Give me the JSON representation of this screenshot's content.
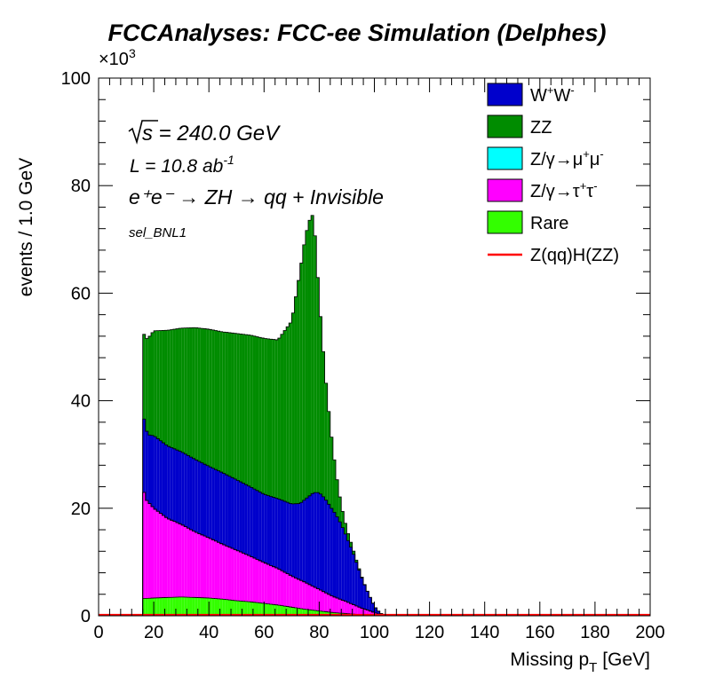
{
  "chart_data": {
    "type": "bar",
    "stacked": true,
    "title": "FCCAnalyses: FCC-ee Simulation (Delphes)",
    "xlabel": "Missing p",
    "xlabel_sub": "T",
    "xlabel_unit": "[GeV]",
    "ylabel": "events / 1.0 GeV",
    "y_multiplier": "×10",
    "y_multiplier_exp": "3",
    "xlim": [
      0,
      200
    ],
    "ylim": [
      0,
      100
    ],
    "x_ticks": [
      "0",
      "20",
      "40",
      "60",
      "80",
      "100",
      "120",
      "140",
      "160",
      "180",
      "200"
    ],
    "y_ticks": [
      "0",
      "20",
      "40",
      "60",
      "80",
      "100"
    ],
    "annotations": {
      "sqrt_s": "s = 240.0 GeV",
      "lumi_main": "L = 10.8 ab",
      "lumi_exp": "-1",
      "process": "e⁺e⁻ → ZH → qq + Invisible",
      "selection": "sel_BNL1"
    },
    "bin_width": 1,
    "x_start": 16,
    "x_end": 104,
    "stack_order": [
      "Rare",
      "Z/γ→τ⁺τ⁻",
      "Z/γ→μ⁺μ⁻",
      "W⁺W⁻",
      "ZZ"
    ],
    "series": [
      {
        "name": "W⁺W⁻",
        "color": "#0000cc",
        "knots_x": [
          16,
          18,
          20,
          25,
          30,
          35,
          40,
          45,
          50,
          55,
          60,
          65,
          70,
          73,
          75,
          78,
          80,
          82,
          84,
          86,
          88,
          90,
          92,
          94,
          96,
          98,
          100,
          102,
          104
        ],
        "knots_y": [
          14,
          12.5,
          13.5,
          13.5,
          13.5,
          13.5,
          13.3,
          13.3,
          13.1,
          12.9,
          12.7,
          13,
          13.4,
          14.2,
          15.5,
          17.5,
          18,
          17.5,
          16.5,
          15.5,
          14,
          12,
          10,
          7.5,
          5,
          3,
          1.2,
          0.3,
          0
        ]
      },
      {
        "name": "ZZ",
        "color": "#008c00",
        "knots_x": [
          16,
          18,
          20,
          25,
          30,
          35,
          40,
          45,
          50,
          55,
          60,
          65,
          70,
          73,
          75,
          77,
          78,
          79,
          80,
          81,
          82,
          84,
          86,
          88,
          90,
          92,
          94,
          96,
          98,
          100,
          102,
          104
        ],
        "knots_y": [
          15,
          18,
          19.5,
          21.5,
          23,
          24.5,
          25.5,
          26.2,
          27.2,
          28.2,
          29,
          29.5,
          34,
          43,
          49,
          52,
          51.5,
          44,
          36,
          30,
          24,
          15,
          8,
          3.5,
          1.5,
          0.7,
          0.3,
          0.1,
          0,
          0,
          0,
          0
        ]
      },
      {
        "name": "Z/γ→μ⁺μ⁻",
        "color": "#00ffff",
        "knots_x": [
          16,
          104
        ],
        "knots_y": [
          0,
          0
        ]
      },
      {
        "name": "Z/γ→τ⁺τ⁻",
        "color": "#ff00ff",
        "knots_x": [
          16,
          17,
          20,
          25,
          30,
          35,
          40,
          45,
          50,
          55,
          60,
          65,
          70,
          75,
          80,
          85,
          90,
          95,
          100,
          102,
          104
        ],
        "knots_y": [
          21,
          18.5,
          16.7,
          14.7,
          13.5,
          12.2,
          11.2,
          10.2,
          9.4,
          8.5,
          7.6,
          6.8,
          5.8,
          5,
          4,
          3,
          2.2,
          1.3,
          0.5,
          0.2,
          0
        ]
      },
      {
        "name": "Rare",
        "color": "#33ff00",
        "knots_x": [
          16,
          20,
          25,
          30,
          35,
          40,
          45,
          50,
          55,
          60,
          65,
          70,
          75,
          80,
          85,
          90,
          95,
          100,
          104
        ],
        "knots_y": [
          3.2,
          3.3,
          3.4,
          3.5,
          3.4,
          3.3,
          3.1,
          2.8,
          2.6,
          2.3,
          2,
          1.6,
          1.2,
          0.9,
          0.6,
          0.4,
          0.2,
          0.1,
          0
        ]
      },
      {
        "name": "Z(qq)H(ZZ)",
        "color": "#ff0000",
        "style": "line",
        "knots_x": [
          0,
          200
        ],
        "knots_y": [
          0.15,
          0.15
        ]
      }
    ],
    "legend": {
      "placement": "top-right",
      "entries": [
        {
          "label": "W",
          "sup1": "+",
          "label2": "W",
          "sup2": "-",
          "color": "#0000cc",
          "kind": "box"
        },
        {
          "label": "ZZ",
          "color": "#008c00",
          "kind": "box"
        },
        {
          "label": "Z/γ→μ",
          "sup1": "+",
          "label2": "μ",
          "sup2": "-",
          "color": "#00ffff",
          "kind": "box"
        },
        {
          "label": "Z/γ→τ",
          "sup1": "+",
          "label2": "τ",
          "sup2": "-",
          "color": "#ff00ff",
          "kind": "box"
        },
        {
          "label": "Rare",
          "color": "#33ff00",
          "kind": "box"
        },
        {
          "label": "Z(qq)H(ZZ)",
          "color": "#ff0000",
          "kind": "line"
        }
      ]
    },
    "grid": false
  }
}
